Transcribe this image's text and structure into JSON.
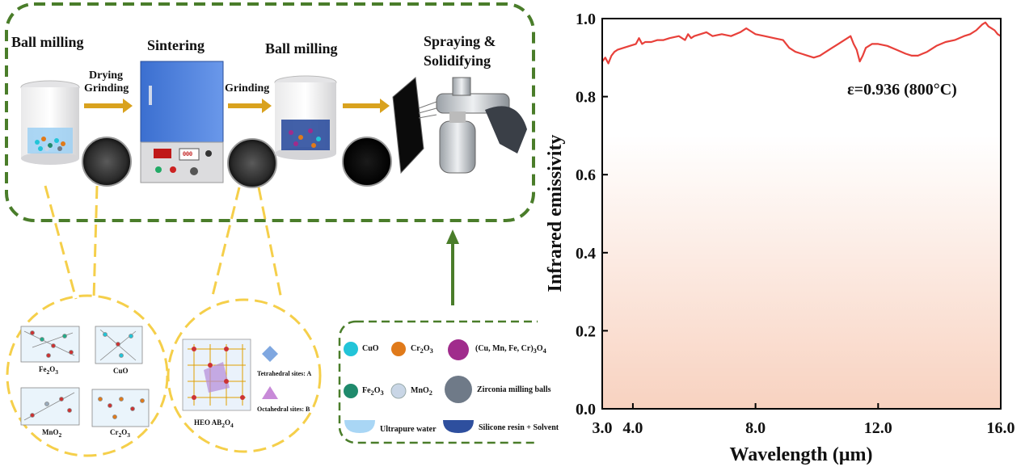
{
  "process": {
    "step1": "Ball milling",
    "arrow1": [
      "Drying",
      "Grinding"
    ],
    "step2": "Sintering",
    "arrow2": "Grinding",
    "step3": "Ball milling",
    "step4": [
      "Spraying &",
      "Solidifying"
    ],
    "lab_display": "000"
  },
  "oxides_circle": {
    "items": [
      {
        "name": "Fe",
        "sub": "2",
        "name2": "O",
        "sub2": "3"
      },
      {
        "name": "CuO"
      },
      {
        "name": "MnO",
        "sub": "2"
      },
      {
        "name": "Cr",
        "sub": "2",
        "name2": "O",
        "sub2": "3"
      }
    ]
  },
  "heo_circle": {
    "tetra": "Tetrahedral sites: A",
    "octa": "Octahedral sites: B",
    "label": "HEO AB",
    "label_sub1": "2",
    "label_mid": "O",
    "label_sub2": "4"
  },
  "legend": {
    "items": [
      {
        "label": "CuO",
        "color": "#22c4d8"
      },
      {
        "label": "Cr",
        "sub": "2",
        "label2": "O",
        "sub2": "3",
        "color": "#e07a1a"
      },
      {
        "label": "(Cu, Mn, Fe, Cr)",
        "sub": "3",
        "label2": "O",
        "sub2": "4",
        "color": "#a02c8c"
      },
      {
        "label": "Fe",
        "sub": "2",
        "label2": "O",
        "sub2": "3",
        "color": "#1f8a6c"
      },
      {
        "label": "MnO",
        "sub": "2",
        "color": "#c9d6e6"
      },
      {
        "label": "Zirconia  milling balls",
        "color": "#6f7a88"
      },
      {
        "label": "Ultrapure water",
        "color": "#a9d6f5"
      },
      {
        "label": "Silicone resin + Solvent",
        "color": "#2e4f9e"
      }
    ]
  },
  "chart_data": {
    "type": "line",
    "xlabel": "Wavelength (μm)",
    "ylabel": "Infrared emissivity",
    "xlim": [
      3.0,
      16.0
    ],
    "ylim": [
      0.0,
      1.0
    ],
    "xticks": [
      "3.0",
      "4.0",
      "8.0",
      "12.0",
      "16.0"
    ],
    "xtick_values": [
      3.0,
      4.0,
      8.0,
      12.0,
      16.0
    ],
    "yticks": [
      "0.0",
      "0.2",
      "0.4",
      "0.6",
      "0.8",
      "1.0"
    ],
    "ytick_values": [
      0.0,
      0.2,
      0.4,
      0.6,
      0.8,
      1.0
    ],
    "annotation": "ε=0.936 (800°C)",
    "series": [
      {
        "color": "#e8403a",
        "x": [
          3.0,
          3.1,
          3.2,
          3.3,
          3.4,
          3.5,
          3.7,
          3.9,
          4.1,
          4.2,
          4.3,
          4.4,
          4.6,
          4.8,
          5.0,
          5.2,
          5.5,
          5.7,
          5.8,
          5.9,
          6.0,
          6.2,
          6.4,
          6.6,
          6.9,
          7.2,
          7.5,
          7.7,
          7.8,
          8.0,
          8.3,
          8.6,
          8.9,
          9.1,
          9.3,
          9.5,
          9.7,
          9.9,
          10.1,
          10.3,
          10.5,
          10.7,
          10.9,
          11.1,
          11.2,
          11.3,
          11.4,
          11.5,
          11.6,
          11.8,
          12.0,
          12.3,
          12.6,
          12.9,
          13.1,
          13.3,
          13.6,
          13.9,
          14.2,
          14.5,
          14.8,
          15.0,
          15.2,
          15.4,
          15.5,
          15.6,
          15.7,
          15.8,
          15.9,
          16.0
        ],
        "y": [
          0.89,
          0.9,
          0.885,
          0.905,
          0.915,
          0.92,
          0.925,
          0.93,
          0.935,
          0.95,
          0.935,
          0.94,
          0.94,
          0.945,
          0.945,
          0.95,
          0.955,
          0.945,
          0.96,
          0.95,
          0.955,
          0.96,
          0.965,
          0.955,
          0.96,
          0.955,
          0.965,
          0.975,
          0.97,
          0.96,
          0.955,
          0.95,
          0.945,
          0.925,
          0.915,
          0.91,
          0.905,
          0.9,
          0.905,
          0.915,
          0.925,
          0.935,
          0.945,
          0.955,
          0.935,
          0.92,
          0.89,
          0.905,
          0.925,
          0.935,
          0.935,
          0.93,
          0.92,
          0.91,
          0.905,
          0.905,
          0.915,
          0.93,
          0.94,
          0.945,
          0.955,
          0.96,
          0.97,
          0.985,
          0.99,
          0.98,
          0.975,
          0.97,
          0.96,
          0.955
        ]
      }
    ],
    "grid": false,
    "background": "gradient"
  }
}
